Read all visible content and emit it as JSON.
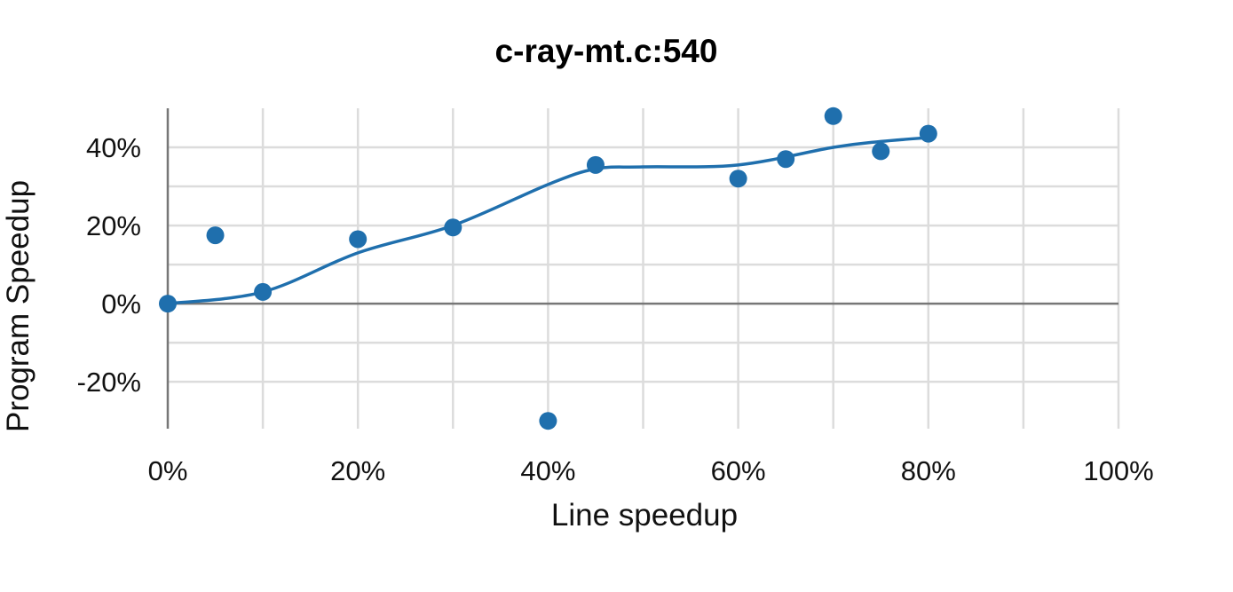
{
  "chart_data": {
    "type": "scatter",
    "title": "c-ray-mt.c:540",
    "xlabel": "Line speedup",
    "ylabel": "Program Speedup",
    "xlim": [
      0,
      100
    ],
    "ylim": [
      -32,
      50
    ],
    "x_ticks": [
      0,
      20,
      40,
      60,
      80,
      100
    ],
    "x_tick_labels": [
      "0%",
      "20%",
      "40%",
      "60%",
      "80%",
      "100%"
    ],
    "y_ticks": [
      -20,
      0,
      20,
      40
    ],
    "y_tick_labels": [
      "-20%",
      "0%",
      "20%",
      "40%"
    ],
    "grid": true,
    "colors": {
      "series": "#1f6fad",
      "grid": "#dcdcdc",
      "axis": "#777777"
    },
    "points": [
      {
        "x": 0,
        "y": 0
      },
      {
        "x": 5,
        "y": 17.5
      },
      {
        "x": 10,
        "y": 3
      },
      {
        "x": 20,
        "y": 16.5
      },
      {
        "x": 30,
        "y": 19.5
      },
      {
        "x": 40,
        "y": -30
      },
      {
        "x": 45,
        "y": 35.5
      },
      {
        "x": 60,
        "y": 32
      },
      {
        "x": 65,
        "y": 37
      },
      {
        "x": 70,
        "y": 48
      },
      {
        "x": 75,
        "y": 39
      },
      {
        "x": 80,
        "y": 43.5
      }
    ],
    "trend": [
      {
        "x": 0,
        "y": 0
      },
      {
        "x": 10,
        "y": 3
      },
      {
        "x": 20,
        "y": 13
      },
      {
        "x": 30,
        "y": 20
      },
      {
        "x": 40,
        "y": 30.5
      },
      {
        "x": 45,
        "y": 34.5
      },
      {
        "x": 50,
        "y": 35
      },
      {
        "x": 60,
        "y": 35.5
      },
      {
        "x": 70,
        "y": 40
      },
      {
        "x": 75,
        "y": 41.5
      },
      {
        "x": 80,
        "y": 42.5
      }
    ]
  }
}
